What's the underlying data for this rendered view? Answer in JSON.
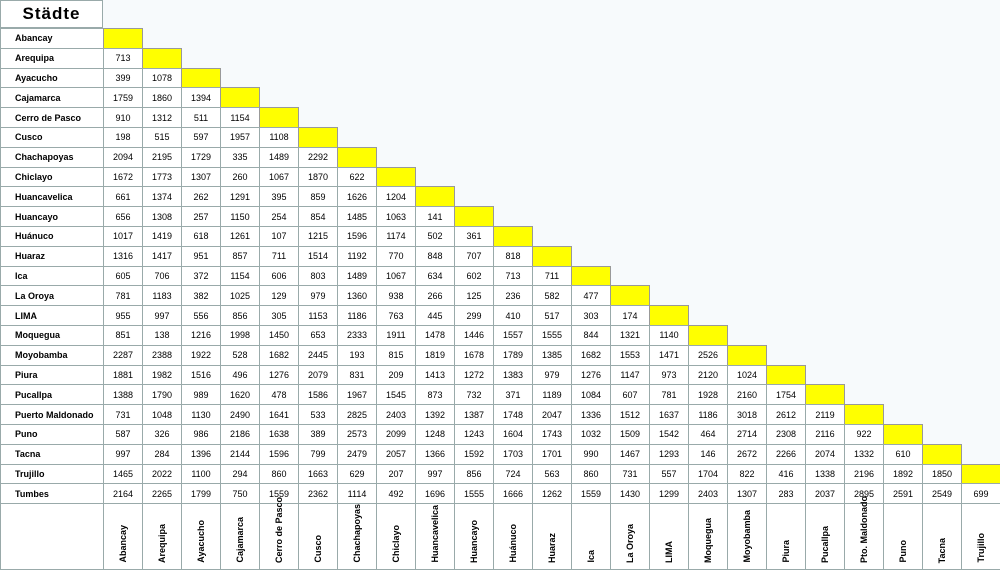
{
  "title": "Städte",
  "columns": [
    "Abancay",
    "Arequipa",
    "Ayacucho",
    "Cajamarca",
    "Cerro de Pasco",
    "Cusco",
    "Chachapoyas",
    "Chiclayo",
    "Huancavelica",
    "Huancayo",
    "Huánuco",
    "Huaraz",
    "Ica",
    "La Oroya",
    "LIMA",
    "Moquegua",
    "Moyobamba",
    "Piura",
    "Pucallpa",
    "Pto. Maldonado",
    "Puno",
    "Tacna",
    "Trujillo"
  ],
  "rows": [
    {
      "name": "Abancay",
      "values": []
    },
    {
      "name": "Arequipa",
      "values": [
        713
      ]
    },
    {
      "name": "Ayacucho",
      "values": [
        399,
        1078
      ]
    },
    {
      "name": "Cajamarca",
      "values": [
        1759,
        1860,
        1394
      ]
    },
    {
      "name": "Cerro de Pasco",
      "values": [
        910,
        1312,
        511,
        1154
      ]
    },
    {
      "name": "Cusco",
      "values": [
        198,
        515,
        597,
        1957,
        1108
      ]
    },
    {
      "name": "Chachapoyas",
      "values": [
        2094,
        2195,
        1729,
        335,
        1489,
        2292
      ]
    },
    {
      "name": "Chiclayo",
      "values": [
        1672,
        1773,
        1307,
        260,
        1067,
        1870,
        622
      ]
    },
    {
      "name": "Huancavelica",
      "values": [
        661,
        1374,
        262,
        1291,
        395,
        859,
        1626,
        1204
      ]
    },
    {
      "name": "Huancayo",
      "values": [
        656,
        1308,
        257,
        1150,
        254,
        854,
        1485,
        1063,
        141
      ]
    },
    {
      "name": "Huánuco",
      "values": [
        1017,
        1419,
        618,
        1261,
        107,
        1215,
        1596,
        1174,
        502,
        361
      ]
    },
    {
      "name": "Huaraz",
      "values": [
        1316,
        1417,
        951,
        857,
        711,
        1514,
        1192,
        770,
        848,
        707,
        818
      ]
    },
    {
      "name": "Ica",
      "values": [
        605,
        706,
        372,
        1154,
        606,
        803,
        1489,
        1067,
        634,
        602,
        713,
        711
      ]
    },
    {
      "name": "La Oroya",
      "values": [
        781,
        1183,
        382,
        1025,
        129,
        979,
        1360,
        938,
        266,
        125,
        236,
        582,
        477
      ]
    },
    {
      "name": "LIMA",
      "values": [
        955,
        997,
        556,
        856,
        305,
        1153,
        1186,
        763,
        445,
        299,
        410,
        517,
        303,
        174
      ]
    },
    {
      "name": "Moquegua",
      "values": [
        851,
        138,
        1216,
        1998,
        1450,
        653,
        2333,
        1911,
        1478,
        1446,
        1557,
        1555,
        844,
        1321,
        1140
      ]
    },
    {
      "name": "Moyobamba",
      "values": [
        2287,
        2388,
        1922,
        528,
        1682,
        2445,
        193,
        815,
        1819,
        1678,
        1789,
        1385,
        1682,
        1553,
        1471,
        2526
      ]
    },
    {
      "name": "Piura",
      "values": [
        1881,
        1982,
        1516,
        496,
        1276,
        2079,
        831,
        209,
        1413,
        1272,
        1383,
        979,
        1276,
        1147,
        973,
        2120,
        1024
      ]
    },
    {
      "name": "Pucallpa",
      "values": [
        1388,
        1790,
        989,
        1620,
        478,
        1586,
        1967,
        1545,
        873,
        732,
        371,
        1189,
        1084,
        607,
        781,
        1928,
        2160,
        1754
      ]
    },
    {
      "name": "Puerto Maldonado",
      "values": [
        731,
        1048,
        1130,
        2490,
        1641,
        533,
        2825,
        2403,
        1392,
        1387,
        1748,
        2047,
        1336,
        1512,
        1637,
        1186,
        3018,
        2612,
        2119
      ]
    },
    {
      "name": "Puno",
      "values": [
        587,
        326,
        986,
        2186,
        1638,
        389,
        2573,
        2099,
        1248,
        1243,
        1604,
        1743,
        1032,
        1509,
        1542,
        464,
        2714,
        2308,
        2116,
        922
      ]
    },
    {
      "name": "Tacna",
      "values": [
        997,
        284,
        1396,
        2144,
        1596,
        799,
        2479,
        2057,
        1366,
        1592,
        1703,
        1701,
        990,
        1467,
        1293,
        146,
        2672,
        2266,
        2074,
        1332,
        610
      ]
    },
    {
      "name": "Trujillo",
      "values": [
        1465,
        2022,
        1100,
        294,
        860,
        1663,
        629,
        207,
        997,
        856,
        724,
        563,
        860,
        731,
        557,
        1704,
        822,
        416,
        1338,
        2196,
        1892,
        1850
      ]
    },
    {
      "name": "Tumbes",
      "values": [
        2164,
        2265,
        1799,
        750,
        1559,
        2362,
        1114,
        492,
        1696,
        1555,
        1666,
        1262,
        1559,
        1430,
        1299,
        2403,
        1307,
        283,
        2037,
        2895,
        2591,
        2549,
        699
      ]
    }
  ]
}
